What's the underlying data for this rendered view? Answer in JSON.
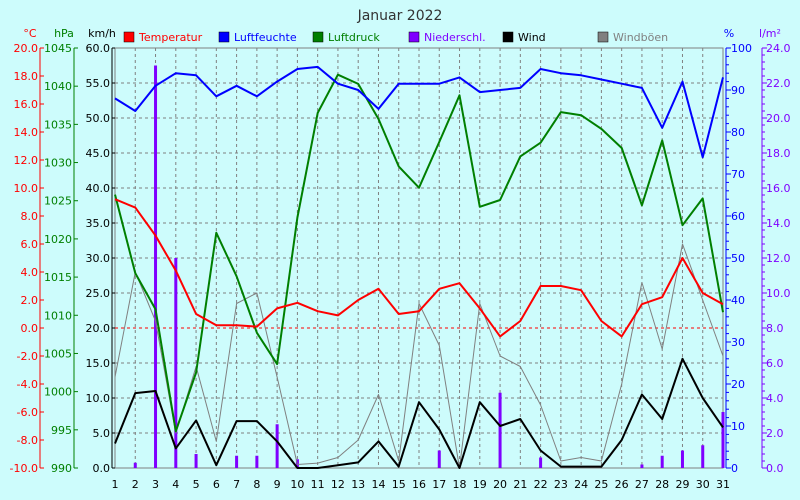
{
  "chart_data": {
    "type": "line",
    "title": "Januar 2022",
    "x": [
      1,
      2,
      3,
      4,
      5,
      6,
      7,
      8,
      9,
      10,
      11,
      12,
      13,
      14,
      15,
      16,
      17,
      18,
      19,
      20,
      21,
      22,
      23,
      24,
      25,
      26,
      27,
      28,
      29,
      30,
      31
    ],
    "axes": {
      "temp": {
        "unit": "°C",
        "min": -10,
        "max": 20,
        "step": 2,
        "color": "#ff0000"
      },
      "press": {
        "unit": "hPa",
        "min": 990,
        "max": 1045,
        "step": 5,
        "color": "#007f00"
      },
      "wind": {
        "unit": "km/h",
        "min": 0,
        "max": 60,
        "step": 5,
        "color": "#000000"
      },
      "hum": {
        "unit": "%",
        "min": 0,
        "max": 100,
        "step": 10,
        "color": "#0000ff"
      },
      "rain": {
        "unit": "l/m²",
        "min": 0,
        "max": 24,
        "step": 2,
        "color": "#7f00ff"
      }
    },
    "series": [
      {
        "name": "Temperatur",
        "axis": "temp",
        "color": "#ff0000",
        "kind": "line",
        "values": [
          9.2,
          8.6,
          6.6,
          4.1,
          1.0,
          0.2,
          0.2,
          0.1,
          1.4,
          1.8,
          1.2,
          0.9,
          2.0,
          2.8,
          1.0,
          1.2,
          2.8,
          3.2,
          1.4,
          -0.6,
          0.5,
          3.0,
          3.0,
          2.7,
          0.5,
          -0.6,
          1.7,
          2.2,
          5.0,
          2.5,
          1.7
        ]
      },
      {
        "name": "Luftfeuchte",
        "axis": "hum",
        "color": "#0000ff",
        "kind": "line",
        "values": [
          88,
          85,
          91,
          94,
          93.5,
          88.5,
          91,
          88.5,
          92,
          95,
          95.5,
          91.5,
          90,
          85.5,
          91.5,
          91.5,
          91.5,
          93,
          89.5,
          90,
          90.5,
          95,
          94,
          93.5,
          92.5,
          91.5,
          90.5,
          81,
          92,
          74,
          93
        ]
      },
      {
        "name": "Luftdruck",
        "axis": "press",
        "color": "#007f00",
        "kind": "line",
        "values": [
          1025.8,
          1015.5,
          1010.8,
          994.8,
          1002.5,
          1020.8,
          1015.1,
          1007.7,
          1003.6,
          1022.8,
          1036.5,
          1041.5,
          1040.3,
          1035.7,
          1029.5,
          1026.7,
          1032.7,
          1038.8,
          1024.2,
          1025.1,
          1030.8,
          1032.6,
          1036.6,
          1036.2,
          1034.4,
          1031.9,
          1024.4,
          1032.9,
          1021.8,
          1025.3,
          1010.4
        ]
      },
      {
        "name": "Niederschl.",
        "axis": "rain",
        "color": "#7f00ff",
        "kind": "bar",
        "values": [
          0,
          0.3,
          23.0,
          12.0,
          0.8,
          0,
          0.7,
          0.7,
          2.5,
          0.5,
          0,
          0,
          0,
          0,
          0,
          0,
          1.0,
          0,
          0,
          4.3,
          0,
          0.6,
          0,
          0,
          0,
          0,
          0.2,
          0.7,
          1.0,
          1.3,
          3.2
        ]
      },
      {
        "name": "Wind",
        "axis": "wind",
        "color": "#000000",
        "kind": "line",
        "values": [
          3.5,
          10.7,
          11.0,
          2.8,
          6.8,
          0.4,
          6.7,
          6.7,
          3.8,
          0,
          0,
          0.4,
          0.8,
          3.8,
          0.2,
          9.4,
          5.5,
          0,
          9.4,
          6.0,
          7.0,
          2.5,
          0.2,
          0.2,
          0.2,
          4.0,
          10.5,
          7.0,
          15.6,
          10.0,
          5.8
        ]
      },
      {
        "name": "Windböen",
        "axis": "wind",
        "color": "#808080",
        "kind": "line",
        "values": [
          13.0,
          28.0,
          21.0,
          5.0,
          14.5,
          3.8,
          23.5,
          25.0,
          13.0,
          0.5,
          0.7,
          1.5,
          4.0,
          10.5,
          1.0,
          23.5,
          17.5,
          0,
          23.5,
          16.0,
          14.5,
          9.0,
          1.0,
          1.5,
          1.0,
          12.0,
          26.5,
          17.0,
          32.0,
          24.0,
          16.0
        ]
      }
    ],
    "grid": true,
    "legend": "top"
  }
}
